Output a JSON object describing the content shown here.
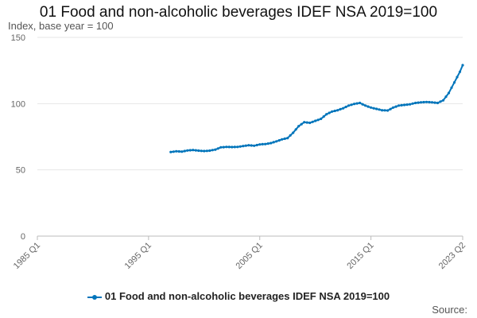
{
  "chart_data": {
    "type": "line",
    "title": "01 Food and non-alcoholic beverages IDEF NSA 2019=100",
    "subtitle": "Index, base year = 100",
    "x_ticks": [
      "1985 Q1",
      "1995 Q1",
      "2005 Q1",
      "2015 Q1",
      "2023 Q2"
    ],
    "y_ticks": [
      0,
      50,
      100,
      150
    ],
    "ylim": [
      0,
      150
    ],
    "xlim": [
      "1985-01",
      "2023-04"
    ],
    "grid": "horizontal",
    "legend_position": "bottom",
    "series": [
      {
        "name": "01 Food and non-alcoholic beverages IDEF NSA 2019=100",
        "color": "#0075bb",
        "points": [
          [
            "1997-01",
            63.5
          ],
          [
            "1997-07",
            64.0
          ],
          [
            "1998-01",
            63.8
          ],
          [
            "1998-07",
            64.6
          ],
          [
            "1999-01",
            65.0
          ],
          [
            "1999-07",
            64.5
          ],
          [
            "2000-01",
            64.2
          ],
          [
            "2000-07",
            64.5
          ],
          [
            "2001-01",
            65.3
          ],
          [
            "2001-07",
            67.0
          ],
          [
            "2002-01",
            67.3
          ],
          [
            "2002-07",
            67.2
          ],
          [
            "2003-01",
            67.3
          ],
          [
            "2003-07",
            68.0
          ],
          [
            "2004-01",
            68.6
          ],
          [
            "2004-07",
            68.2
          ],
          [
            "2005-01",
            69.2
          ],
          [
            "2005-07",
            69.5
          ],
          [
            "2006-01",
            70.2
          ],
          [
            "2006-07",
            71.5
          ],
          [
            "2007-01",
            73.0
          ],
          [
            "2007-07",
            74.0
          ],
          [
            "2008-01",
            78.0
          ],
          [
            "2008-07",
            83.0
          ],
          [
            "2009-01",
            86.0
          ],
          [
            "2009-07",
            85.5
          ],
          [
            "2010-01",
            87.0
          ],
          [
            "2010-07",
            88.5
          ],
          [
            "2011-01",
            92.0
          ],
          [
            "2011-07",
            94.0
          ],
          [
            "2012-01",
            95.0
          ],
          [
            "2012-07",
            96.5
          ],
          [
            "2013-01",
            98.5
          ],
          [
            "2013-07",
            99.8
          ],
          [
            "2014-01",
            100.5
          ],
          [
            "2014-07",
            98.5
          ],
          [
            "2015-01",
            97.0
          ],
          [
            "2015-07",
            96.0
          ],
          [
            "2016-01",
            95.0
          ],
          [
            "2016-07",
            94.8
          ],
          [
            "2017-01",
            97.0
          ],
          [
            "2017-07",
            98.5
          ],
          [
            "2018-01",
            99.0
          ],
          [
            "2018-07",
            99.5
          ],
          [
            "2019-01",
            100.5
          ],
          [
            "2019-07",
            101.0
          ],
          [
            "2020-01",
            101.2
          ],
          [
            "2020-07",
            101.0
          ],
          [
            "2021-01",
            100.5
          ],
          [
            "2021-07",
            102.5
          ],
          [
            "2022-01",
            108.0
          ],
          [
            "2022-07",
            116.0
          ],
          [
            "2023-01",
            124.0
          ],
          [
            "2023-04",
            129.0
          ]
        ]
      }
    ]
  },
  "source_label": "Source:"
}
